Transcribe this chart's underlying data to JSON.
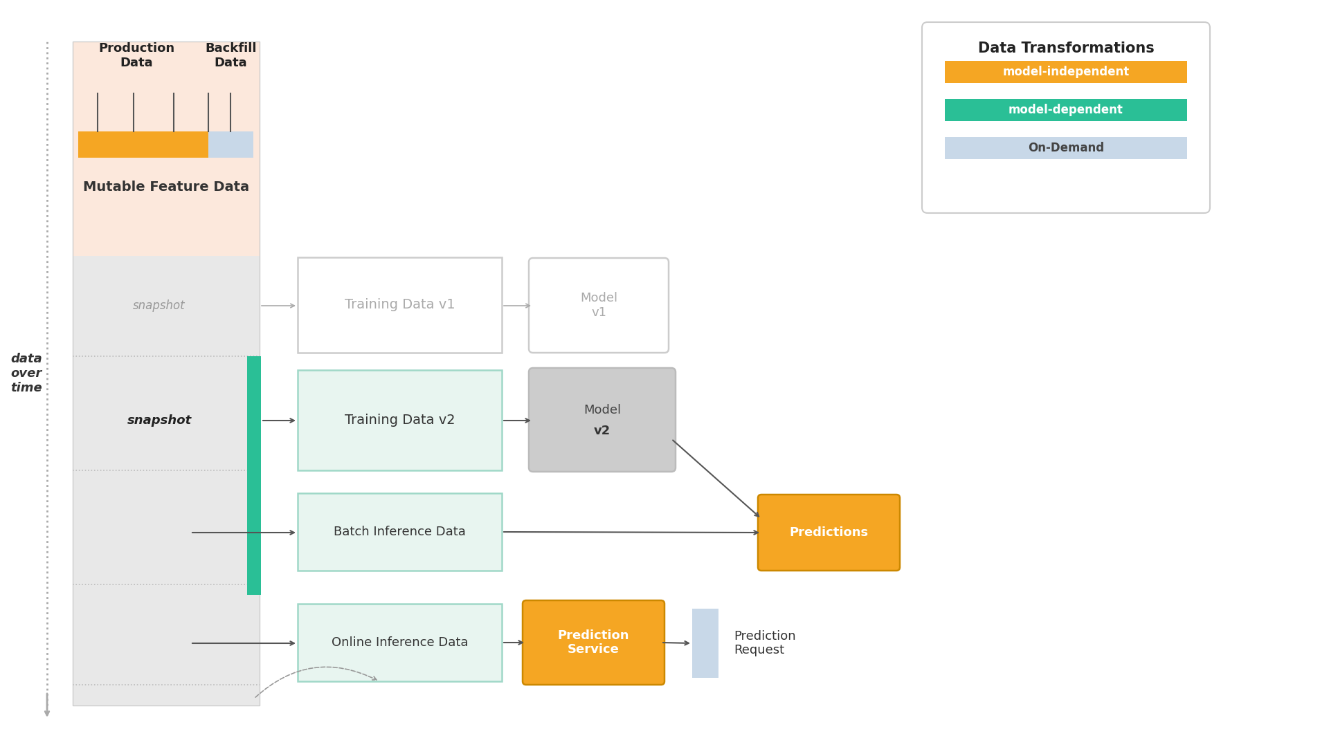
{
  "bg_color": "#ffffff",
  "mutable_bg_top": "#fce8dc",
  "mutable_bg_bottom": "#e8e8e8",
  "orange_color": "#f5a623",
  "green_color": "#2abf96",
  "light_green_bg": "#e8f5f0",
  "light_blue": "#c8d8e8",
  "prediction_orange": "#f5a623",
  "model_gray_bg": "#cccccc",
  "model_gray_border": "#bbbbbb",
  "arrow_dark": "#555555",
  "arrow_light": "#aaaaaa",
  "dashed_color": "#999999",
  "legend_title": "Data Transformations",
  "legend_items": [
    "model-independent",
    "model-dependent",
    "On-Demand"
  ],
  "legend_colors": [
    "#f5a623",
    "#2abf96",
    "#c8d8e8"
  ],
  "legend_text_colors": [
    "#ffffff",
    "#ffffff",
    "#444444"
  ]
}
